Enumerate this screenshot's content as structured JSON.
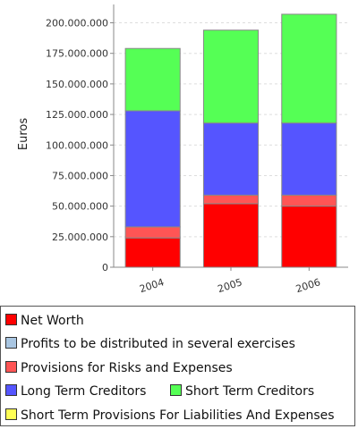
{
  "chart_data": {
    "type": "bar",
    "stacked": true,
    "categories": [
      "2004",
      "2005",
      "2006"
    ],
    "ylabel": "Euros",
    "ylim": [
      0,
      215000000
    ],
    "yticks": [
      "0",
      "25.000.000",
      "50.000.000",
      "75.000.000",
      "100.000.000",
      "125.000.000",
      "150.000.000",
      "175.000.000",
      "200.000.000"
    ],
    "ytick_values": [
      0,
      25000000,
      50000000,
      75000000,
      100000000,
      125000000,
      150000000,
      175000000,
      200000000
    ],
    "grid": true,
    "legend_position": "bottom",
    "series": [
      {
        "name": "Net Worth",
        "color": "#ff0000",
        "values": [
          24000000,
          52000000,
          50000000
        ]
      },
      {
        "name": "Profits to be distributed in several exercises",
        "color": "#a9c6e2",
        "values": [
          0,
          0,
          0
        ]
      },
      {
        "name": "Provisions for Risks and Expenses",
        "color": "#ff5555",
        "values": [
          9000000,
          7000000,
          9000000
        ]
      },
      {
        "name": "Long Term Creditors",
        "color": "#5555ff",
        "values": [
          95000000,
          59000000,
          59000000
        ]
      },
      {
        "name": "Short Term Creditors",
        "color": "#55ff55",
        "values": [
          51000000,
          76000000,
          89000000
        ]
      },
      {
        "name": "Short Term Provisions For Liabilities And Expenses",
        "color": "#ffff55",
        "values": [
          0,
          0,
          0
        ]
      }
    ]
  },
  "legend": {
    "items": [
      "Net Worth",
      "Profits to be distributed in several exercises",
      "Provisions for Risks and Expenses",
      "Long Term Creditors",
      "Short Term Creditors",
      "Short Term Provisions For Liabilities And Expenses"
    ]
  }
}
